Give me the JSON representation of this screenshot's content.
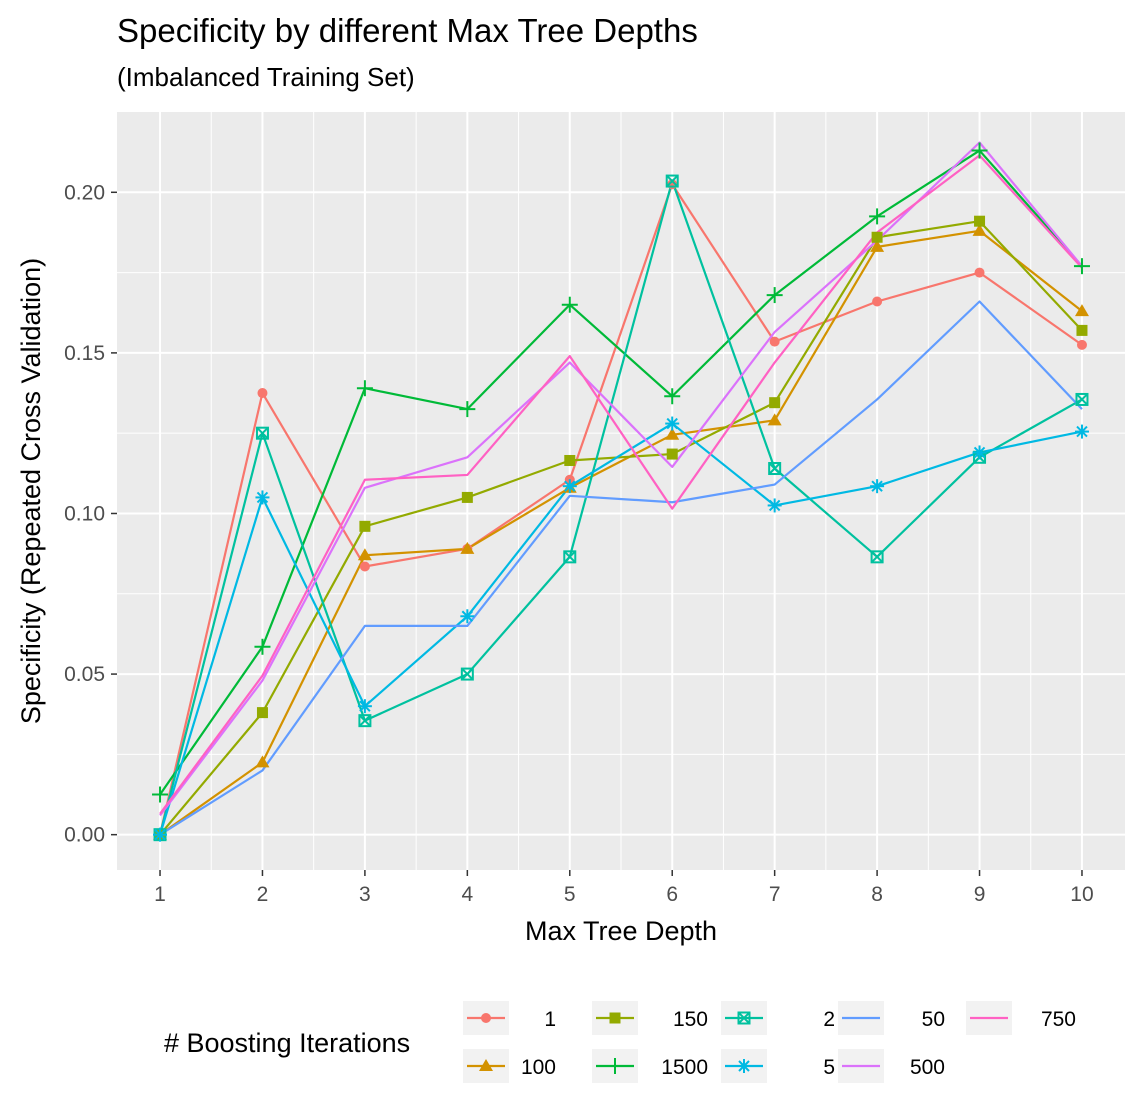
{
  "chart_data": {
    "type": "line",
    "title": "Specificity by different Max Tree Depths",
    "subtitle": "(Imbalanced Training Set)",
    "xlabel": "Max Tree Depth",
    "ylabel": "Specificity (Repeated Cross Validation)",
    "x": [
      1,
      2,
      3,
      4,
      5,
      6,
      7,
      8,
      9,
      10
    ],
    "xlim": [
      0.58,
      10.42
    ],
    "ylim": [
      -0.011,
      0.225
    ],
    "x_ticks": [
      "1",
      "2",
      "3",
      "4",
      "5",
      "6",
      "7",
      "8",
      "9",
      "10"
    ],
    "y_ticks": [
      0.0,
      0.05,
      0.1,
      0.15,
      0.2
    ],
    "y_tick_labels": [
      "0.00",
      "0.05",
      "0.10",
      "0.15",
      "0.20"
    ],
    "grid": true,
    "legend_position": "bottom",
    "legend_title": "# Boosting Iterations",
    "series": [
      {
        "name": "1",
        "color": "#F8766D",
        "marker": "circle",
        "values": [
          0.0,
          0.1375,
          0.0835,
          0.089,
          0.1105,
          0.2025,
          0.1535,
          0.166,
          0.175,
          0.1525
        ]
      },
      {
        "name": "100",
        "color": "#D39200",
        "marker": "triangle",
        "values": [
          0.0,
          0.0225,
          0.087,
          0.089,
          0.108,
          0.1245,
          0.129,
          0.183,
          0.188,
          0.163
        ]
      },
      {
        "name": "150",
        "color": "#93AA00",
        "marker": "square",
        "values": [
          0.0,
          0.038,
          0.096,
          0.105,
          0.1165,
          0.1185,
          0.1345,
          0.186,
          0.191,
          0.157
        ]
      },
      {
        "name": "1500",
        "color": "#00BA38",
        "marker": "plus",
        "values": [
          0.0125,
          0.0585,
          0.139,
          0.1325,
          0.165,
          0.1365,
          0.168,
          0.1925,
          0.213,
          0.177
        ]
      },
      {
        "name": "2",
        "color": "#00C19F",
        "marker": "square-x",
        "values": [
          0.0,
          0.125,
          0.0355,
          0.05,
          0.0865,
          0.2035,
          0.114,
          0.0865,
          0.1175,
          0.1355
        ]
      },
      {
        "name": "5",
        "color": "#00B9E3",
        "marker": "star",
        "values": [
          0.0,
          0.105,
          0.04,
          0.068,
          0.1085,
          0.128,
          0.1025,
          0.1085,
          0.119,
          0.1255
        ]
      },
      {
        "name": "50",
        "color": "#619CFF",
        "marker": "none",
        "values": [
          0.0,
          0.02,
          0.065,
          0.065,
          0.1055,
          0.1035,
          0.109,
          0.1355,
          0.166,
          0.1325
        ]
      },
      {
        "name": "500",
        "color": "#DB72FB",
        "marker": "none",
        "values": [
          0.006,
          0.048,
          0.108,
          0.1175,
          0.147,
          0.1145,
          0.1565,
          0.185,
          0.2155,
          0.177
        ]
      },
      {
        "name": "750",
        "color": "#FF61C3",
        "marker": "none",
        "values": [
          0.0065,
          0.0495,
          0.1105,
          0.112,
          0.149,
          0.1015,
          0.147,
          0.1875,
          0.2115,
          0.1765
        ]
      }
    ]
  }
}
